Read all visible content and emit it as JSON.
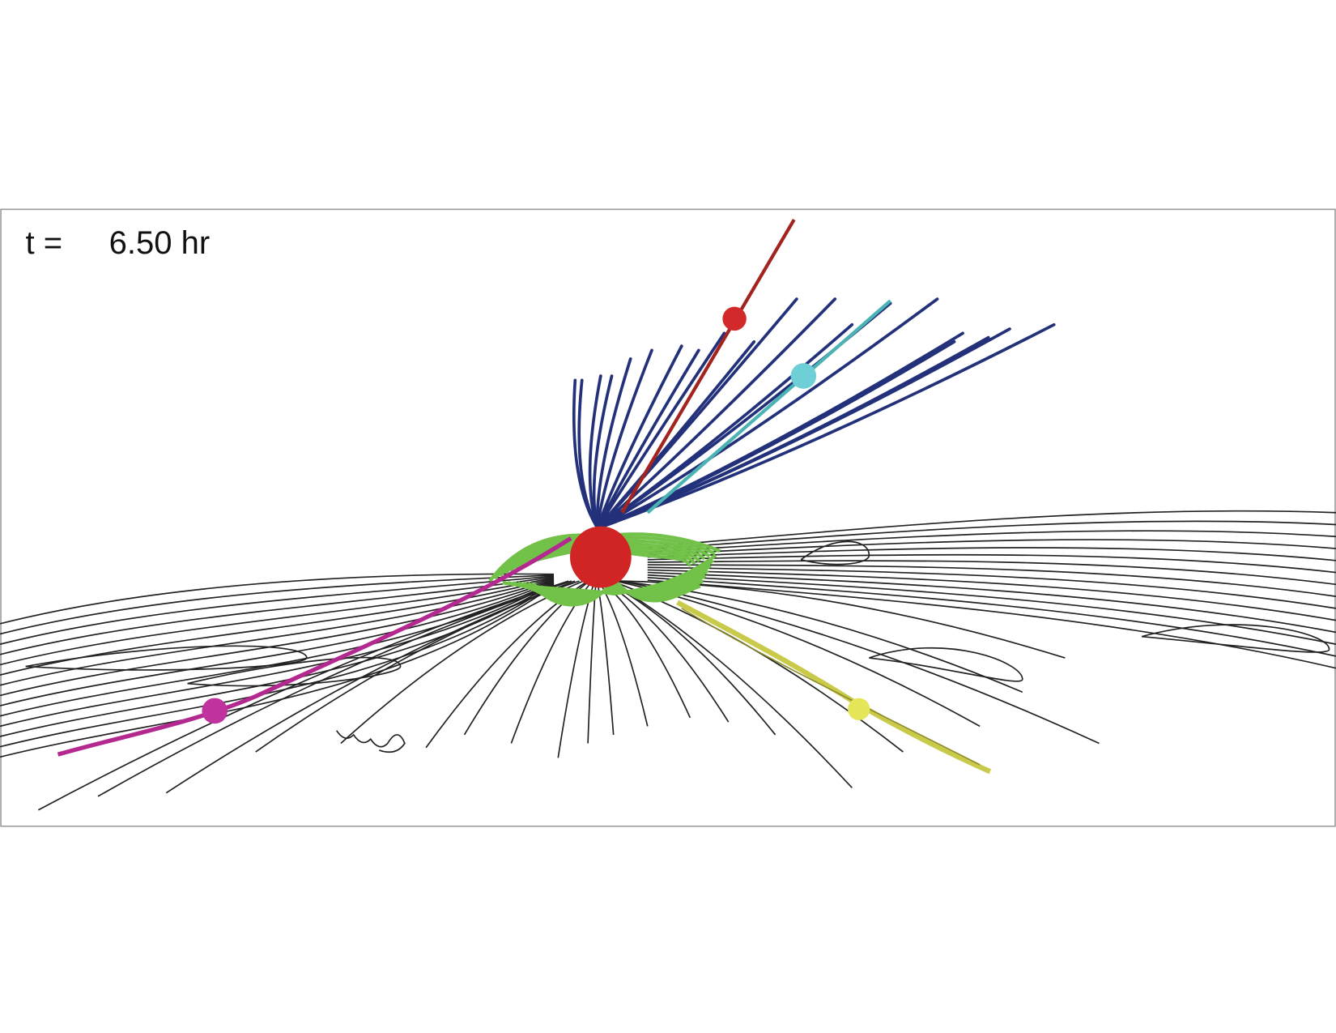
{
  "label": {
    "prefix": "t =",
    "time": "6.50 hr"
  }
}
